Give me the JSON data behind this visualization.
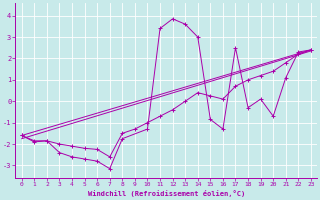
{
  "xlabel": "Windchill (Refroidissement éolien,°C)",
  "bg_color": "#c8eaea",
  "line_color": "#aa00aa",
  "xlim": [
    -0.5,
    23.5
  ],
  "ylim": [
    -3.6,
    4.6
  ],
  "yticks": [
    -3,
    -2,
    -1,
    0,
    1,
    2,
    3,
    4
  ],
  "xticks": [
    0,
    1,
    2,
    3,
    4,
    5,
    6,
    7,
    8,
    9,
    10,
    11,
    12,
    13,
    14,
    15,
    16,
    17,
    18,
    19,
    20,
    21,
    22,
    23
  ],
  "series": [
    {
      "x": [
        0,
        1,
        2,
        3,
        4,
        5,
        6,
        7,
        8,
        10,
        11,
        12,
        13,
        14,
        15,
        16,
        17,
        18,
        19,
        20,
        21,
        22,
        23
      ],
      "y": [
        -1.6,
        -1.9,
        -1.85,
        -2.4,
        -2.6,
        -2.7,
        -2.8,
        -3.15,
        -1.75,
        -1.3,
        3.4,
        3.85,
        3.6,
        3.0,
        -0.85,
        -1.3,
        2.5,
        -0.3,
        0.1,
        -0.7,
        1.1,
        2.3,
        2.4
      ],
      "marker": "+"
    },
    {
      "x": [
        0,
        1,
        2,
        3,
        4,
        5,
        6,
        7,
        8,
        9,
        10,
        11,
        12,
        13,
        14,
        15,
        16,
        17,
        18,
        19,
        20,
        21,
        22,
        23
      ],
      "y": [
        -1.6,
        -1.85,
        -1.85,
        -2.0,
        -2.1,
        -2.2,
        -2.25,
        -2.6,
        -1.5,
        -1.3,
        -1.0,
        -0.7,
        -0.4,
        -0.0,
        0.4,
        0.25,
        0.1,
        0.7,
        1.0,
        1.2,
        1.4,
        1.8,
        2.2,
        2.4
      ],
      "marker": "+"
    },
    {
      "x": [
        0,
        23
      ],
      "y": [
        -1.6,
        2.4
      ],
      "marker": null
    },
    {
      "x": [
        0,
        23
      ],
      "y": [
        -1.75,
        2.35
      ],
      "marker": null
    }
  ]
}
